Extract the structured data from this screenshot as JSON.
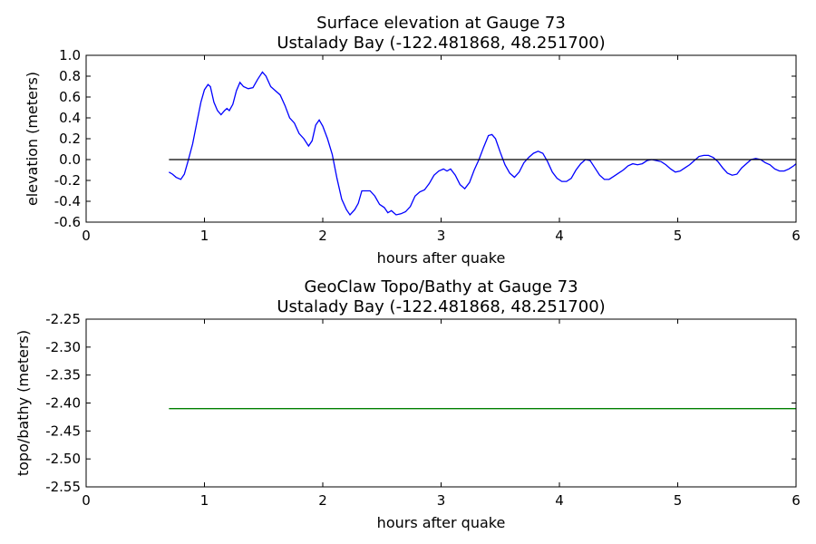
{
  "chart_data": [
    {
      "type": "line",
      "title": "Surface elevation at Gauge 73",
      "subtitle": "Ustalady Bay  (-122.481868, 48.251700)",
      "xlabel": "hours after quake",
      "ylabel": "elevation (meters)",
      "xlim": [
        0,
        6
      ],
      "xticks": [
        0,
        1,
        2,
        3,
        4,
        5,
        6
      ],
      "ylim": [
        -0.6,
        1.0
      ],
      "yticks": [
        -0.6,
        -0.4,
        -0.2,
        {
          "value": 0,
          "label": "0.0"
        },
        0.2,
        0.4,
        0.6,
        0.8,
        {
          "value": 1,
          "label": "1.0"
        }
      ],
      "series": [
        {
          "color": "#0000ff",
          "x": [
            0.7,
            0.73,
            0.76,
            0.8,
            0.83,
            0.86,
            0.9,
            0.94,
            0.97,
            1.0,
            1.03,
            1.05,
            1.08,
            1.11,
            1.14,
            1.17,
            1.19,
            1.21,
            1.24,
            1.27,
            1.3,
            1.33,
            1.37,
            1.41,
            1.45,
            1.49,
            1.52,
            1.56,
            1.6,
            1.64,
            1.68,
            1.72,
            1.76,
            1.8,
            1.84,
            1.88,
            1.91,
            1.94,
            1.97,
            2.0,
            2.04,
            2.08,
            2.12,
            2.16,
            2.2,
            2.23,
            2.27,
            2.3,
            2.33,
            2.36,
            2.4,
            2.44,
            2.48,
            2.52,
            2.55,
            2.58,
            2.62,
            2.66,
            2.7,
            2.74,
            2.78,
            2.82,
            2.86,
            2.9,
            2.94,
            2.98,
            3.02,
            3.05,
            3.08,
            3.12,
            3.16,
            3.2,
            3.24,
            3.28,
            3.32,
            3.36,
            3.4,
            3.43,
            3.46,
            3.5,
            3.54,
            3.58,
            3.62,
            3.66,
            3.7,
            3.74,
            3.78,
            3.82,
            3.86,
            3.9,
            3.94,
            3.98,
            4.02,
            4.06,
            4.1,
            4.14,
            4.18,
            4.22,
            4.26,
            4.3,
            4.34,
            4.38,
            4.42,
            4.46,
            4.5,
            4.54,
            4.58,
            4.62,
            4.66,
            4.7,
            4.74,
            4.78,
            4.82,
            4.86,
            4.9,
            4.94,
            4.98,
            5.02,
            5.06,
            5.1,
            5.14,
            5.18,
            5.22,
            5.26,
            5.3,
            5.34,
            5.38,
            5.42,
            5.46,
            5.5,
            5.54,
            5.58,
            5.62,
            5.66,
            5.7,
            5.74,
            5.78,
            5.82,
            5.86,
            5.9,
            5.94,
            5.98,
            6.0
          ],
          "values": [
            -0.12,
            -0.14,
            -0.17,
            -0.19,
            -0.14,
            -0.02,
            0.15,
            0.38,
            0.55,
            0.67,
            0.72,
            0.7,
            0.55,
            0.47,
            0.43,
            0.47,
            0.49,
            0.47,
            0.53,
            0.66,
            0.74,
            0.7,
            0.68,
            0.69,
            0.77,
            0.84,
            0.8,
            0.7,
            0.66,
            0.62,
            0.52,
            0.4,
            0.35,
            0.25,
            0.2,
            0.13,
            0.18,
            0.33,
            0.38,
            0.32,
            0.2,
            0.05,
            -0.18,
            -0.38,
            -0.48,
            -0.53,
            -0.48,
            -0.42,
            -0.3,
            -0.3,
            -0.3,
            -0.35,
            -0.43,
            -0.46,
            -0.51,
            -0.49,
            -0.53,
            -0.52,
            -0.5,
            -0.45,
            -0.35,
            -0.31,
            -0.29,
            -0.23,
            -0.15,
            -0.11,
            -0.09,
            -0.11,
            -0.09,
            -0.15,
            -0.24,
            -0.28,
            -0.22,
            -0.1,
            0.0,
            0.12,
            0.23,
            0.24,
            0.2,
            0.07,
            -0.05,
            -0.13,
            -0.17,
            -0.12,
            -0.03,
            0.02,
            0.06,
            0.08,
            0.06,
            -0.02,
            -0.12,
            -0.18,
            -0.21,
            -0.21,
            -0.18,
            -0.1,
            -0.04,
            0.0,
            -0.01,
            -0.08,
            -0.15,
            -0.19,
            -0.19,
            -0.16,
            -0.13,
            -0.1,
            -0.06,
            -0.04,
            -0.05,
            -0.04,
            -0.01,
            0.0,
            -0.01,
            -0.02,
            -0.05,
            -0.09,
            -0.12,
            -0.11,
            -0.08,
            -0.05,
            -0.01,
            0.03,
            0.04,
            0.04,
            0.02,
            -0.02,
            -0.08,
            -0.13,
            -0.15,
            -0.14,
            -0.08,
            -0.04,
            0.0,
            0.01,
            0.0,
            -0.03,
            -0.05,
            -0.09,
            -0.11,
            -0.11,
            -0.09,
            -0.06,
            -0.04
          ]
        },
        {
          "color": "#000000",
          "x": [
            0.7,
            6
          ],
          "values": [
            0,
            0
          ]
        }
      ]
    },
    {
      "type": "line",
      "title": "GeoClaw Topo/Bathy at Gauge 73",
      "subtitle": "Ustalady Bay  (-122.481868, 48.251700)",
      "xlabel": "hours after quake",
      "ylabel": "topo/bathy (meters)",
      "xlim": [
        0,
        6
      ],
      "xticks": [
        0,
        1,
        2,
        3,
        4,
        5,
        6
      ],
      "ylim": [
        -2.55,
        -2.25
      ],
      "yticks": [
        -2.55,
        {
          "value": -2.5,
          "label": "-2.50"
        },
        -2.45,
        {
          "value": -2.4,
          "label": "-2.40"
        },
        -2.35,
        {
          "value": -2.3,
          "label": "-2.30"
        },
        -2.25
      ],
      "series": [
        {
          "color": "#008000",
          "x": [
            0.7,
            6
          ],
          "values": [
            -2.41,
            -2.41
          ]
        }
      ]
    }
  ]
}
